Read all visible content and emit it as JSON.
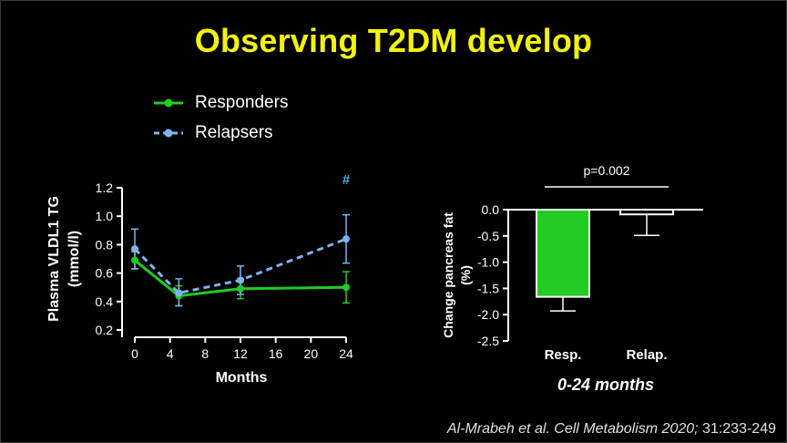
{
  "slide": {
    "title": "Observing T2DM develop",
    "citation_main": "Al-Mrabeh et al. Cell Metabolism 2020;",
    "citation_ref": " 31:233-249"
  },
  "colors": {
    "title": "#f2f20a",
    "responders": "#22cc22",
    "relapsers": "#7fb2f0",
    "annotation": "#5aa9ee"
  },
  "legend": [
    {
      "label": "Responders",
      "color": "#22cc22",
      "dashed": false
    },
    {
      "label": "Relapsers",
      "color": "#7fb2f0",
      "dashed": true
    }
  ],
  "chart_data": [
    {
      "type": "line",
      "ylabel": "Plasma VLDL1 TG",
      "ylabel_unit": "(mmol/l)",
      "xlabel": "Months",
      "xlim": [
        0,
        24
      ],
      "ylim": [
        0.2,
        1.2
      ],
      "x_ticks": [
        0,
        4,
        8,
        12,
        16,
        20,
        24
      ],
      "y_ticks": [
        0.2,
        0.4,
        0.6,
        0.8,
        1.0,
        1.2
      ],
      "y_tick_labels": [
        "0.2",
        "0.4",
        "0.6",
        "0.8",
        "1.0",
        "1.2"
      ],
      "annotation": {
        "text": "#",
        "x": 24
      },
      "series": [
        {
          "name": "Responders",
          "color": "#22cc22",
          "dashed": false,
          "x": [
            0,
            5,
            12,
            24
          ],
          "y": [
            0.69,
            0.44,
            0.49,
            0.5
          ],
          "err_low": [
            0.63,
            0.37,
            0.42,
            0.39
          ],
          "err_high": [
            0.75,
            0.51,
            0.56,
            0.61
          ]
        },
        {
          "name": "Relapsers",
          "color": "#7fb2f0",
          "dashed": true,
          "x": [
            0,
            5,
            12,
            24
          ],
          "y": [
            0.77,
            0.46,
            0.55,
            0.84
          ],
          "err_low": [
            0.63,
            0.37,
            0.45,
            0.67
          ],
          "err_high": [
            0.91,
            0.56,
            0.65,
            1.01
          ]
        }
      ]
    },
    {
      "type": "bar",
      "ylabel": "Change pancreas fat",
      "ylabel_unit": "(%)",
      "categories": [
        "Resp.",
        "Relap."
      ],
      "values": [
        -1.66,
        -0.09
      ],
      "err_low": [
        -1.93,
        -0.49
      ],
      "colors": [
        "#22cc22",
        "#ffffff"
      ],
      "ylim": [
        -2.5,
        0.0
      ],
      "y_ticks": [
        0.0,
        -0.5,
        -1.0,
        -1.5,
        -2.0,
        -2.5
      ],
      "y_tick_labels": [
        "0.0",
        "-0.5",
        "-1.0",
        "-1.5",
        "-2.0",
        "-2.5"
      ],
      "significance": "p=0.002",
      "subtitle": "0-24 months"
    }
  ]
}
